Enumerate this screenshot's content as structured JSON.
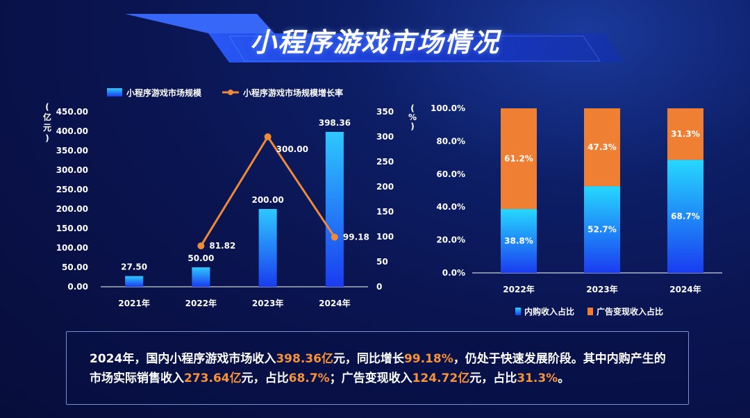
{
  "page": {
    "title": "小程序游戏市场情况"
  },
  "colors": {
    "bar_top": "#2ec8ff",
    "bar_bottom": "#1a3cf0",
    "line": "#ef8a3a",
    "orange_stack": "#ef7f33",
    "axis": "#ffffff"
  },
  "chart_data": [
    {
      "type": "bar",
      "categories": [
        "2021年",
        "2022年",
        "2023年",
        "2024年"
      ],
      "series": [
        {
          "name": "小程序游戏市场规模",
          "type": "bar",
          "axis": "left",
          "values": [
            27.5,
            50.0,
            200.0,
            398.36
          ],
          "labels": [
            "27.50",
            "50.00",
            "200.00",
            "398.36"
          ]
        },
        {
          "name": "小程序游戏市场规模增长率",
          "type": "line",
          "axis": "right",
          "values": [
            null,
            81.82,
            300.0,
            99.18
          ],
          "labels": [
            "",
            "81.82",
            "300.00",
            "99.18"
          ]
        }
      ],
      "y_left": {
        "unit": "亿元",
        "unit_chars": [
          "(",
          "亿",
          "元",
          ")"
        ],
        "ylim": [
          0,
          450
        ],
        "ticks": [
          "0.00",
          "50.00",
          "100.00",
          "150.00",
          "200.00",
          "250.00",
          "300.00",
          "350.00",
          "400.00",
          "450.00"
        ]
      },
      "y_right": {
        "unit": "%",
        "unit_chars": [
          "(",
          "%",
          ")"
        ],
        "ylim": [
          0,
          350
        ],
        "ticks": [
          "0",
          "50",
          "100",
          "150",
          "200",
          "250",
          "300",
          "350"
        ]
      },
      "legend_position": "top",
      "legend": [
        {
          "label": "小程序游戏市场规模",
          "icon": "bar-swatch-icon"
        },
        {
          "label": "小程序游戏市场规模增长率",
          "icon": "line-marker-icon"
        }
      ]
    },
    {
      "type": "bar",
      "stacked": true,
      "categories": [
        "2022年",
        "2023年",
        "2024年"
      ],
      "series": [
        {
          "name": "内购收入占比",
          "values": [
            38.8,
            52.7,
            68.7
          ],
          "labels": [
            "38.8%",
            "52.7%",
            "68.7%"
          ]
        },
        {
          "name": "广告变现收入占比",
          "values": [
            61.2,
            47.3,
            31.3
          ],
          "labels": [
            "61.2%",
            "47.3%",
            "31.3%"
          ]
        }
      ],
      "ylim": [
        0,
        100
      ],
      "ticks": [
        "0.0%",
        "20.0%",
        "40.0%",
        "60.0%",
        "80.0%",
        "100.0%"
      ],
      "legend_position": "bottom",
      "legend": [
        {
          "label": "内购收入占比",
          "icon": "bar-swatch-icon"
        },
        {
          "label": "广告变现收入占比",
          "icon": "orange-swatch-icon"
        }
      ]
    }
  ],
  "summary": {
    "segments": [
      {
        "text": "2024年，国内小程序游戏市场收入",
        "highlight": false
      },
      {
        "text": "398.36亿",
        "highlight": true
      },
      {
        "text": "元，同比增长",
        "highlight": false
      },
      {
        "text": "99.18%",
        "highlight": true
      },
      {
        "text": "，仍处于快速发展阶段。其中内购产生的市场实际销售收入",
        "highlight": false
      },
      {
        "text": "273.64亿",
        "highlight": true
      },
      {
        "text": "元，占比",
        "highlight": false
      },
      {
        "text": "68.7%",
        "highlight": true
      },
      {
        "text": "；广告变现收入",
        "highlight": false
      },
      {
        "text": "124.72亿",
        "highlight": true
      },
      {
        "text": "元，占比",
        "highlight": false
      },
      {
        "text": "31.3%",
        "highlight": true
      },
      {
        "text": "。",
        "highlight": false
      }
    ]
  }
}
